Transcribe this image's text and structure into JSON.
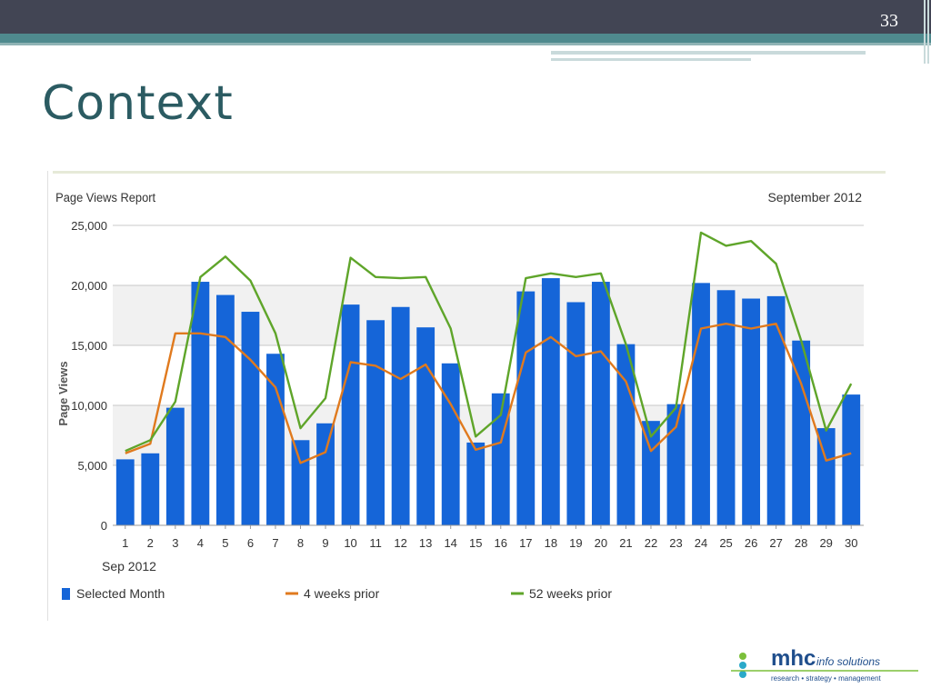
{
  "slide": {
    "number": "33",
    "title": "Context"
  },
  "chart_data": {
    "type": "bar",
    "title": "Page Views Report",
    "date_label": "September 2012",
    "ylabel": "Page Views",
    "xlabel": "Sep 2012",
    "ylim": [
      0,
      25000
    ],
    "y_ticks": [
      {
        "value": 0,
        "label": "0"
      },
      {
        "value": 5000,
        "label": "5,000"
      },
      {
        "value": 10000,
        "label": "10,000"
      },
      {
        "value": 15000,
        "label": "15,000"
      },
      {
        "value": 20000,
        "label": "20,000"
      },
      {
        "value": 25000,
        "label": "25,000"
      }
    ],
    "categories": [
      "1",
      "2",
      "3",
      "4",
      "5",
      "6",
      "7",
      "8",
      "9",
      "10",
      "11",
      "12",
      "13",
      "14",
      "15",
      "16",
      "17",
      "18",
      "19",
      "20",
      "21",
      "22",
      "23",
      "24",
      "25",
      "26",
      "27",
      "28",
      "29",
      "30"
    ],
    "series": [
      {
        "name": "Selected Month",
        "kind": "bar",
        "color": "#1565d8",
        "values": [
          5500,
          6000,
          9800,
          20300,
          19200,
          17800,
          14300,
          7100,
          8500,
          18400,
          17100,
          18200,
          16500,
          13500,
          6900,
          11000,
          19500,
          20600,
          18600,
          20300,
          15100,
          8700,
          10100,
          20200,
          19600,
          18900,
          19100,
          15400,
          8100,
          10900
        ]
      },
      {
        "name": "4 weeks prior",
        "kind": "line",
        "color": "#e07a1e",
        "values": [
          6000,
          6800,
          16000,
          16000,
          15700,
          13800,
          11500,
          5200,
          6100,
          13600,
          13300,
          12200,
          13400,
          10100,
          6300,
          6900,
          14400,
          15700,
          14100,
          14500,
          12000,
          6200,
          8200,
          16400,
          16800,
          16400,
          16800,
          11800,
          5400,
          6000
        ]
      },
      {
        "name": "52 weeks prior",
        "kind": "line",
        "color": "#5fa52a",
        "values": [
          6200,
          7100,
          10300,
          20700,
          22400,
          20400,
          16000,
          8100,
          10600,
          22300,
          20700,
          20600,
          20700,
          16400,
          7400,
          9200,
          20600,
          21000,
          20700,
          21000,
          15100,
          7400,
          9800,
          24400,
          23300,
          23700,
          21800,
          15400,
          7900,
          11800
        ]
      }
    ],
    "grid": "alternating horizontal bands",
    "legend": "bottom"
  },
  "footer": {
    "logo_text": "mhc",
    "logo_tagline": "info solutions",
    "logo_subline": "research • strategy • management"
  }
}
